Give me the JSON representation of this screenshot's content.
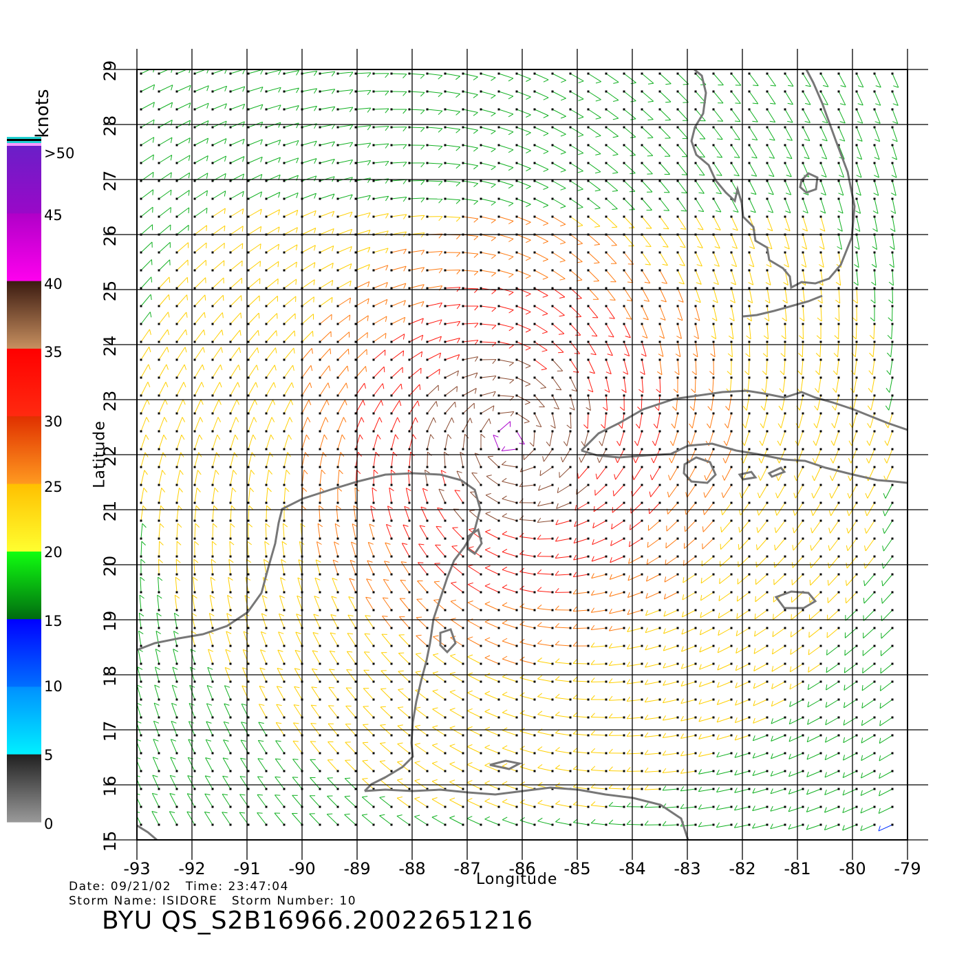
{
  "map": {
    "lon_range": [
      -93,
      -79
    ],
    "lat_range": [
      15,
      29
    ],
    "lon_ticks": [
      "-93",
      "-92",
      "-91",
      "-90",
      "-89",
      "-88",
      "-87",
      "-86",
      "-85",
      "-84",
      "-83",
      "-82",
      "-81",
      "-80",
      "-79"
    ],
    "lat_ticks": [
      "29",
      "28",
      "27",
      "26",
      "25",
      "24",
      "23",
      "22",
      "21",
      "20",
      "19",
      "18",
      "17",
      "16",
      "15"
    ],
    "x_axis_label": "Longitude",
    "y_axis_label": "Latitude",
    "coastline_color": "#777777",
    "grid_color": "#000000"
  },
  "legend": {
    "units": "knots",
    "labels": [
      ">50",
      "45",
      "40",
      "35",
      "30",
      "25",
      "20",
      "15",
      "10",
      "5",
      "0"
    ],
    "bands": [
      {
        "from": 50,
        "to": 99,
        "colors": [
          "#6a1fc8",
          "#9a08c8"
        ]
      },
      {
        "from": 40,
        "to": 50,
        "colors": [
          "#b000c8",
          "#ff00ee"
        ]
      },
      {
        "from": 35,
        "to": 40,
        "colors": [
          "#3a1a10",
          "#c89060"
        ]
      },
      {
        "from": 30,
        "to": 35,
        "colors": [
          "#ff0000",
          "#ff2a10"
        ]
      },
      {
        "from": 25,
        "to": 30,
        "colors": [
          "#e03000",
          "#ff9a20"
        ]
      },
      {
        "from": 20,
        "to": 25,
        "colors": [
          "#ffc000",
          "#ffff30"
        ]
      },
      {
        "from": 15,
        "to": 20,
        "colors": [
          "#10ff10",
          "#006a10"
        ]
      },
      {
        "from": 10,
        "to": 15,
        "colors": [
          "#0000ff",
          "#0070ff"
        ]
      },
      {
        "from": 5,
        "to": 10,
        "colors": [
          "#0090ff",
          "#00f0ff"
        ]
      },
      {
        "from": 0,
        "to": 5,
        "colors": [
          "#202020",
          "#9a9a9a"
        ]
      }
    ],
    "top_stripes": [
      "#20d0d0",
      "#000000",
      "#20d0d0",
      "#ff99ff"
    ]
  },
  "info": {
    "date_line": "Date: 09/21/02   Time: 23:47:04",
    "storm_line": "Storm Name: ISIDORE   Storm Number: 10",
    "product_id": "BYU QS_S2B16966.20022651216"
  }
}
